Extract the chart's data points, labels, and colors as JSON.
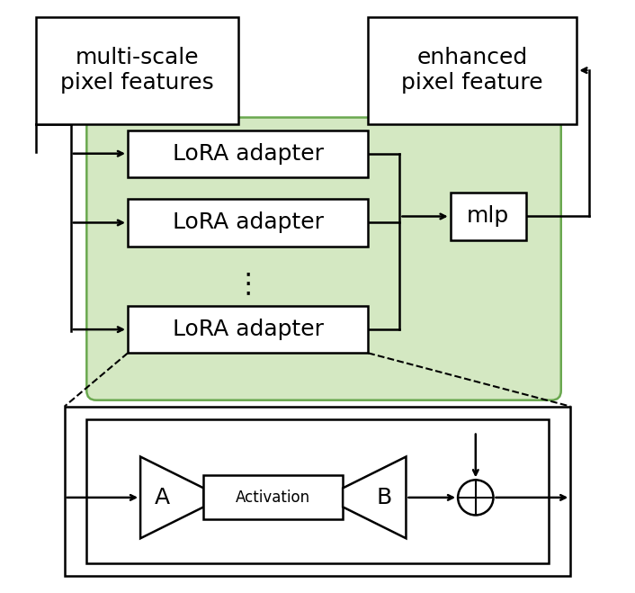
{
  "fig_width": 7.06,
  "fig_height": 6.59,
  "bg_color": "#ffffff",
  "green_bg": "#d4e8c2",
  "green_border": "#6aa84f",
  "box_color": "#ffffff",
  "box_edge": "#000000",
  "lora_labels": [
    "LoRA adapter",
    "LoRA adapter",
    "LoRA adapter"
  ],
  "mlp_label": "mlp",
  "multi_scale_label": "multi-scale\npixel features",
  "enhanced_label": "enhanced\npixel feature",
  "A_label": "A",
  "B_label": "B",
  "activation_label": "Activation",
  "dots": "⋯",
  "font_size_large": 18,
  "font_size_medium": 14,
  "font_size_small": 13
}
